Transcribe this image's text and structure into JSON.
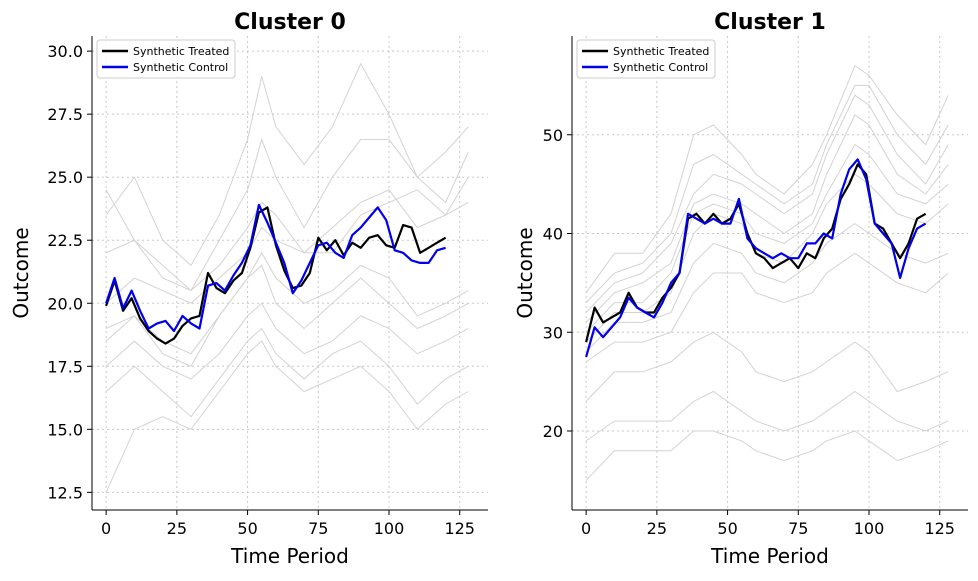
{
  "chart_data": [
    {
      "type": "line",
      "title": "Cluster 0",
      "xlabel": "Time Period",
      "ylabel": "Outcome",
      "xlim": [
        -5,
        135
      ],
      "ylim": [
        11.8,
        30.6
      ],
      "xticks": [
        0,
        25,
        50,
        75,
        100,
        125
      ],
      "yticks": [
        12.5,
        15.0,
        17.5,
        20.0,
        22.5,
        25.0,
        27.5,
        30.0
      ],
      "ytick_labels": [
        "12.5",
        "15.0",
        "17.5",
        "20.0",
        "22.5",
        "25.0",
        "27.5",
        "30.0"
      ],
      "grid": true,
      "legend_position": "top-left",
      "background_series": [
        {
          "x": [
            0,
            10,
            20,
            30,
            40,
            50,
            55,
            60,
            70,
            80,
            90,
            100,
            110,
            120,
            128
          ],
          "values": [
            23.5,
            25.0,
            22.5,
            21.5,
            23.5,
            26.5,
            29.0,
            27.0,
            25.5,
            27.0,
            29.5,
            27.5,
            25.0,
            26.0,
            27.0
          ]
        },
        {
          "x": [
            0,
            10,
            20,
            30,
            40,
            50,
            55,
            60,
            70,
            80,
            90,
            100,
            110,
            120,
            128
          ],
          "values": [
            24.5,
            22.5,
            21.0,
            20.5,
            22.5,
            24.5,
            26.5,
            25.0,
            23.0,
            25.0,
            26.5,
            26.5,
            25.0,
            24.0,
            26.0
          ]
        },
        {
          "x": [
            0,
            10,
            20,
            30,
            40,
            50,
            55,
            60,
            70,
            80,
            90,
            100,
            110,
            120,
            128
          ],
          "values": [
            22.0,
            22.5,
            21.5,
            20.5,
            21.5,
            23.0,
            24.0,
            23.5,
            22.0,
            22.0,
            23.5,
            24.0,
            24.5,
            23.5,
            25.0
          ]
        },
        {
          "x": [
            0,
            10,
            20,
            30,
            40,
            50,
            55,
            60,
            70,
            80,
            90,
            100,
            110,
            120,
            128
          ],
          "values": [
            20.0,
            21.0,
            20.5,
            20.0,
            21.0,
            22.0,
            23.0,
            22.5,
            22.0,
            23.0,
            24.0,
            24.5,
            23.0,
            23.5,
            24.0
          ]
        },
        {
          "x": [
            0,
            10,
            20,
            30,
            40,
            50,
            55,
            60,
            70,
            80,
            90,
            100,
            110,
            120,
            128
          ],
          "values": [
            19.0,
            19.5,
            18.5,
            18.0,
            19.5,
            21.0,
            22.0,
            21.0,
            20.0,
            20.5,
            21.5,
            21.0,
            19.5,
            20.0,
            20.5
          ]
        },
        {
          "x": [
            0,
            10,
            20,
            30,
            40,
            50,
            55,
            60,
            70,
            80,
            90,
            100,
            110,
            120,
            128
          ],
          "values": [
            18.5,
            19.5,
            18.0,
            17.5,
            19.5,
            21.0,
            21.5,
            20.0,
            19.0,
            20.0,
            21.0,
            20.0,
            19.0,
            19.5,
            20.0
          ]
        },
        {
          "x": [
            0,
            10,
            20,
            30,
            40,
            50,
            55,
            60,
            70,
            80,
            90,
            100,
            110,
            120,
            128
          ],
          "values": [
            17.5,
            18.5,
            17.5,
            17.0,
            18.0,
            19.5,
            20.0,
            19.0,
            18.0,
            18.5,
            19.5,
            19.0,
            18.0,
            18.5,
            19.0
          ]
        },
        {
          "x": [
            0,
            10,
            20,
            30,
            40,
            50,
            55,
            60,
            70,
            80,
            90,
            100,
            110,
            120,
            128
          ],
          "values": [
            16.5,
            17.5,
            16.5,
            15.5,
            17.0,
            18.5,
            19.0,
            18.0,
            17.0,
            18.0,
            18.5,
            17.5,
            16.0,
            17.0,
            17.5
          ]
        },
        {
          "x": [
            0,
            10,
            20,
            30,
            40,
            50,
            55,
            60,
            70,
            80,
            90,
            100,
            110,
            120,
            128
          ],
          "values": [
            12.5,
            15.0,
            15.5,
            15.0,
            16.5,
            18.0,
            18.5,
            17.5,
            16.5,
            17.0,
            17.5,
            16.5,
            15.0,
            16.0,
            16.5
          ]
        }
      ],
      "series": [
        {
          "name": "Synthetic Treated",
          "color": "#000000",
          "x": [
            0,
            3,
            6,
            9,
            12,
            15,
            18,
            21,
            24,
            27,
            30,
            33,
            36,
            39,
            42,
            45,
            48,
            51,
            54,
            57,
            60,
            63,
            66,
            69,
            72,
            75,
            78,
            81,
            84,
            87,
            90,
            93,
            96,
            99,
            102,
            105,
            108,
            111,
            114,
            117,
            120
          ],
          "values": [
            19.9,
            20.9,
            19.7,
            20.2,
            19.4,
            18.9,
            18.6,
            18.4,
            18.6,
            19.1,
            19.4,
            19.5,
            21.2,
            20.6,
            20.4,
            20.9,
            21.2,
            22.2,
            23.6,
            23.8,
            22.3,
            21.3,
            20.6,
            20.7,
            21.2,
            22.6,
            22.1,
            22.5,
            21.9,
            22.4,
            22.2,
            22.6,
            22.7,
            22.3,
            22.2,
            23.1,
            23.0,
            22.0,
            22.2,
            22.4,
            22.6
          ]
        },
        {
          "name": "Synthetic Control",
          "color": "#0000ee",
          "x": [
            0,
            3,
            6,
            9,
            12,
            15,
            18,
            21,
            24,
            27,
            30,
            33,
            36,
            39,
            42,
            45,
            48,
            51,
            54,
            57,
            60,
            63,
            66,
            69,
            72,
            75,
            78,
            81,
            84,
            87,
            90,
            93,
            96,
            99,
            102,
            105,
            108,
            111,
            114,
            117,
            120
          ],
          "values": [
            20.0,
            21.0,
            19.8,
            20.5,
            19.7,
            19.0,
            19.2,
            19.3,
            18.9,
            19.5,
            19.2,
            19.0,
            20.7,
            20.8,
            20.5,
            21.1,
            21.6,
            22.3,
            23.9,
            23.2,
            22.4,
            21.6,
            20.4,
            20.9,
            21.6,
            22.3,
            22.4,
            22.0,
            21.8,
            22.7,
            23.0,
            23.4,
            23.8,
            23.3,
            22.1,
            22.0,
            21.7,
            21.6,
            21.6,
            22.1,
            22.2
          ]
        }
      ]
    },
    {
      "type": "line",
      "title": "Cluster 1",
      "xlabel": "Time Period",
      "ylabel": "Outcome",
      "xlim": [
        -5,
        135
      ],
      "ylim": [
        12,
        60
      ],
      "xticks": [
        0,
        25,
        50,
        75,
        100,
        125
      ],
      "yticks": [
        20,
        30,
        40,
        50
      ],
      "ytick_labels": [
        "20",
        "30",
        "40",
        "50"
      ],
      "grid": true,
      "legend_position": "top-left",
      "background_series": [
        {
          "x": [
            0,
            10,
            20,
            30,
            38,
            45,
            55,
            60,
            70,
            80,
            85,
            95,
            100,
            110,
            120,
            128
          ],
          "values": [
            34,
            38,
            38,
            42,
            50,
            51,
            48,
            46,
            44,
            47,
            50,
            57,
            56,
            52,
            49,
            54
          ]
        },
        {
          "x": [
            0,
            10,
            20,
            30,
            38,
            45,
            55,
            60,
            70,
            80,
            85,
            95,
            100,
            110,
            120,
            128
          ],
          "values": [
            33,
            36,
            37,
            40,
            47,
            48,
            46,
            45,
            43,
            45,
            49,
            55,
            55,
            50,
            47,
            51
          ]
        },
        {
          "x": [
            0,
            10,
            20,
            30,
            38,
            45,
            55,
            60,
            70,
            80,
            85,
            95,
            100,
            110,
            120,
            128
          ],
          "values": [
            32,
            35,
            36,
            39,
            44,
            46,
            45,
            44,
            42,
            44,
            48,
            54,
            53,
            48,
            45,
            49
          ]
        },
        {
          "x": [
            0,
            10,
            20,
            30,
            38,
            45,
            55,
            60,
            70,
            80,
            85,
            95,
            100,
            110,
            120,
            128
          ],
          "values": [
            31,
            34,
            35,
            37,
            43,
            44,
            43,
            42,
            40,
            42,
            46,
            52,
            51,
            46,
            44,
            47
          ]
        },
        {
          "x": [
            0,
            10,
            20,
            30,
            38,
            45,
            55,
            60,
            70,
            80,
            85,
            95,
            100,
            110,
            120,
            128
          ],
          "values": [
            30,
            33,
            33,
            36,
            42,
            43,
            42,
            40,
            39,
            41,
            44,
            49,
            48,
            44,
            43,
            45
          ]
        },
        {
          "x": [
            0,
            10,
            20,
            30,
            38,
            45,
            55,
            60,
            70,
            80,
            85,
            95,
            100,
            110,
            120,
            128
          ],
          "values": [
            29,
            32,
            32,
            34,
            40,
            42,
            41,
            38,
            37,
            40,
            43,
            46,
            45,
            42,
            41,
            43
          ]
        },
        {
          "x": [
            0,
            10,
            20,
            30,
            38,
            45,
            55,
            60,
            70,
            80,
            85,
            95,
            100,
            110,
            120,
            128
          ],
          "values": [
            28,
            31,
            31,
            32,
            37,
            39,
            38,
            36,
            35,
            37,
            39,
            41,
            40,
            38,
            37,
            38
          ]
        },
        {
          "x": [
            0,
            10,
            20,
            30,
            38,
            45,
            55,
            60,
            70,
            80,
            85,
            95,
            100,
            110,
            120,
            128
          ],
          "values": [
            27,
            29,
            29,
            30,
            34,
            36,
            36,
            34,
            33,
            34,
            36,
            38,
            37,
            35,
            34,
            36
          ]
        },
        {
          "x": [
            0,
            10,
            20,
            30,
            38,
            45,
            55,
            60,
            70,
            80,
            85,
            95,
            100,
            110,
            120,
            128
          ],
          "values": [
            23,
            26,
            26,
            27,
            29,
            30,
            28,
            26,
            25,
            26,
            27,
            29,
            28,
            24,
            25,
            26
          ]
        },
        {
          "x": [
            0,
            10,
            20,
            30,
            38,
            45,
            55,
            60,
            70,
            80,
            85,
            95,
            100,
            110,
            120,
            128
          ],
          "values": [
            19,
            21,
            21,
            21,
            23,
            24,
            22,
            21,
            20,
            21,
            22,
            24,
            23,
            21,
            20,
            21
          ]
        },
        {
          "x": [
            0,
            10,
            20,
            30,
            38,
            45,
            55,
            60,
            70,
            80,
            85,
            95,
            100,
            110,
            120,
            128
          ],
          "values": [
            15,
            18,
            18,
            18,
            20,
            20,
            19,
            18,
            17,
            18,
            19,
            20,
            19,
            17,
            18,
            19
          ]
        }
      ],
      "series": [
        {
          "name": "Synthetic Treated",
          "color": "#000000",
          "x": [
            0,
            3,
            6,
            9,
            12,
            15,
            18,
            21,
            24,
            27,
            30,
            33,
            36,
            39,
            42,
            45,
            48,
            51,
            54,
            57,
            60,
            63,
            66,
            69,
            72,
            75,
            78,
            81,
            84,
            87,
            90,
            93,
            96,
            99,
            102,
            105,
            108,
            111,
            114,
            117,
            120
          ],
          "values": [
            29.0,
            32.5,
            31.0,
            31.5,
            32.0,
            34.0,
            32.5,
            32.0,
            32.0,
            33.5,
            34.5,
            36.0,
            41.5,
            42.0,
            41.0,
            42.0,
            41.0,
            41.5,
            43.0,
            40.0,
            38.0,
            37.5,
            36.5,
            37.0,
            37.5,
            36.5,
            38.0,
            37.5,
            39.5,
            40.5,
            43.5,
            45.0,
            47.0,
            46.0,
            41.0,
            40.5,
            39.0,
            37.5,
            39.0,
            41.5,
            42.0
          ]
        },
        {
          "name": "Synthetic Control",
          "color": "#0000ee",
          "x": [
            0,
            3,
            6,
            9,
            12,
            15,
            18,
            21,
            24,
            27,
            30,
            33,
            36,
            39,
            42,
            45,
            48,
            51,
            54,
            57,
            60,
            63,
            66,
            69,
            72,
            75,
            78,
            81,
            84,
            87,
            90,
            93,
            96,
            99,
            102,
            105,
            108,
            111,
            114,
            117,
            120
          ],
          "values": [
            27.5,
            30.5,
            29.5,
            30.5,
            31.5,
            33.5,
            32.5,
            32.0,
            31.5,
            33.0,
            35.0,
            36.0,
            42.0,
            41.5,
            41.0,
            41.5,
            41.0,
            41.0,
            43.5,
            39.5,
            38.5,
            38.0,
            37.5,
            38.0,
            37.5,
            37.5,
            39.0,
            39.0,
            40.0,
            39.5,
            44.0,
            46.5,
            47.5,
            45.5,
            41.0,
            40.0,
            39.0,
            35.5,
            38.5,
            40.5,
            41.0
          ]
        }
      ]
    }
  ]
}
